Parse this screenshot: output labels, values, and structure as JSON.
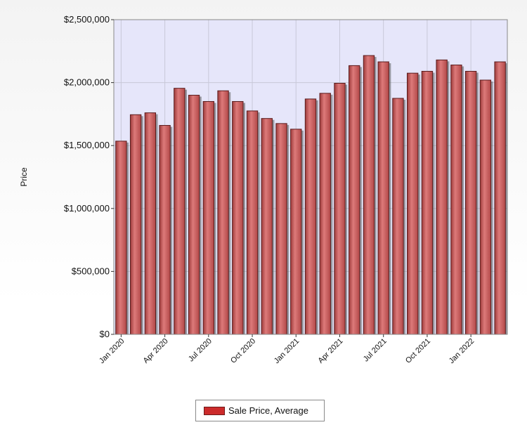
{
  "chart_data": {
    "type": "bar",
    "title": "",
    "xlabel": "",
    "ylabel": "Price",
    "ylim": [
      0,
      2500000
    ],
    "y_ticks": [
      0,
      500000,
      1000000,
      1500000,
      2000000,
      2500000
    ],
    "y_tick_labels": [
      "$0",
      "$500,000",
      "$1,000,000",
      "$1,500,000",
      "$2,000,000",
      "$2,500,000"
    ],
    "x_tick_labels": [
      "Jan 2020",
      "Apr 2020",
      "Jul 2020",
      "Oct 2020",
      "Jan 2021",
      "Apr 2021",
      "Jul 2021",
      "Oct 2021",
      "Jan 2022"
    ],
    "categories": [
      "Jan 2020",
      "Feb 2020",
      "Mar 2020",
      "Apr 2020",
      "May 2020",
      "Jun 2020",
      "Jul 2020",
      "Aug 2020",
      "Sep 2020",
      "Oct 2020",
      "Nov 2020",
      "Dec 2020",
      "Jan 2021",
      "Feb 2021",
      "Mar 2021",
      "Apr 2021",
      "May 2021",
      "Jun 2021",
      "Jul 2021",
      "Aug 2021",
      "Sep 2021",
      "Oct 2021",
      "Nov 2021",
      "Dec 2021",
      "Jan 2022",
      "Feb 2022",
      "Mar 2022"
    ],
    "series": [
      {
        "name": "Sale Price, Average",
        "color": "#c95f5f",
        "values": [
          1535000,
          1745000,
          1760000,
          1660000,
          1955000,
          1900000,
          1850000,
          1935000,
          1850000,
          1775000,
          1715000,
          1675000,
          1630000,
          1870000,
          1915000,
          1995000,
          2135000,
          2215000,
          2165000,
          1875000,
          2075000,
          2090000,
          2180000,
          2140000,
          2090000,
          2020000,
          2165000
        ]
      }
    ],
    "grid": true,
    "legend_position": "bottom"
  },
  "legend": {
    "label": "Sale Price, Average"
  }
}
